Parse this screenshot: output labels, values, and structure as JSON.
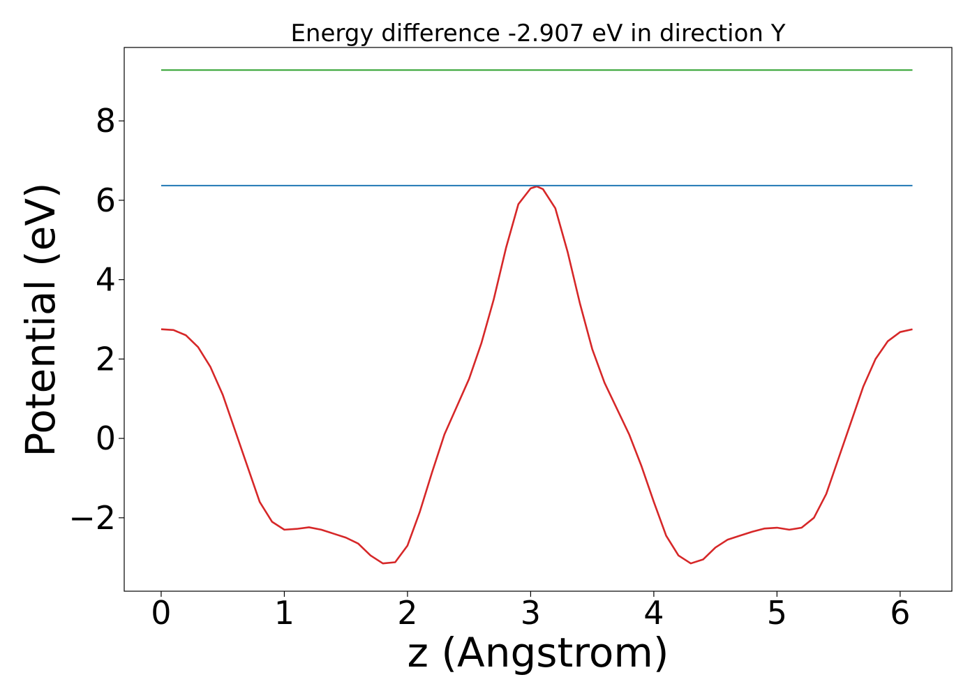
{
  "chart_data": {
    "type": "line",
    "title": "Energy difference -2.907 eV in direction Y",
    "xlabel": "z (Angstrom)",
    "ylabel": "Potential (eV)",
    "xlim": [
      -0.3,
      6.42
    ],
    "ylim": [
      -3.85,
      9.85
    ],
    "xticks": [
      0,
      1,
      2,
      3,
      4,
      5,
      6
    ],
    "xtick_labels": [
      "0",
      "1",
      "2",
      "3",
      "4",
      "5",
      "6"
    ],
    "yticks": [
      -2,
      0,
      2,
      4,
      6,
      8
    ],
    "ytick_labels": [
      "−2",
      "0",
      "2",
      "4",
      "6",
      "8"
    ],
    "grid": false,
    "series": [
      {
        "color": "#d62728",
        "points": [
          [
            0,
            2.75
          ],
          [
            0.1,
            2.73
          ],
          [
            0.2,
            2.6
          ],
          [
            0.3,
            2.3
          ],
          [
            0.4,
            1.8
          ],
          [
            0.5,
            1.1
          ],
          [
            0.6,
            0.2
          ],
          [
            0.7,
            -0.7
          ],
          [
            0.8,
            -1.6
          ],
          [
            0.9,
            -2.1
          ],
          [
            1.0,
            -2.3
          ],
          [
            1.1,
            -2.28
          ],
          [
            1.2,
            -2.24
          ],
          [
            1.3,
            -2.3
          ],
          [
            1.4,
            -2.4
          ],
          [
            1.5,
            -2.5
          ],
          [
            1.6,
            -2.65
          ],
          [
            1.7,
            -2.95
          ],
          [
            1.8,
            -3.15
          ],
          [
            1.9,
            -3.12
          ],
          [
            2.0,
            -2.7
          ],
          [
            2.1,
            -1.85
          ],
          [
            2.2,
            -0.85
          ],
          [
            2.3,
            0.1
          ],
          [
            2.4,
            0.8
          ],
          [
            2.5,
            1.5
          ],
          [
            2.6,
            2.4
          ],
          [
            2.7,
            3.5
          ],
          [
            2.8,
            4.8
          ],
          [
            2.9,
            5.9
          ],
          [
            3.0,
            6.3
          ],
          [
            3.05,
            6.35
          ],
          [
            3.1,
            6.28
          ],
          [
            3.2,
            5.8
          ],
          [
            3.3,
            4.7
          ],
          [
            3.4,
            3.4
          ],
          [
            3.5,
            2.25
          ],
          [
            3.6,
            1.4
          ],
          [
            3.7,
            0.75
          ],
          [
            3.8,
            0.1
          ],
          [
            3.9,
            -0.7
          ],
          [
            4.0,
            -1.6
          ],
          [
            4.1,
            -2.45
          ],
          [
            4.2,
            -2.95
          ],
          [
            4.3,
            -3.15
          ],
          [
            4.4,
            -3.05
          ],
          [
            4.5,
            -2.75
          ],
          [
            4.6,
            -2.55
          ],
          [
            4.7,
            -2.45
          ],
          [
            4.8,
            -2.35
          ],
          [
            4.9,
            -2.27
          ],
          [
            5.0,
            -2.25
          ],
          [
            5.1,
            -2.3
          ],
          [
            5.2,
            -2.25
          ],
          [
            5.3,
            -2.0
          ],
          [
            5.4,
            -1.4
          ],
          [
            5.5,
            -0.5
          ],
          [
            5.6,
            0.4
          ],
          [
            5.7,
            1.3
          ],
          [
            5.8,
            2.0
          ],
          [
            5.9,
            2.45
          ],
          [
            6.0,
            2.68
          ],
          [
            6.1,
            2.75
          ]
        ]
      },
      {
        "color": "#1f77b4",
        "points": [
          [
            0,
            6.37
          ],
          [
            6.1,
            6.37
          ]
        ]
      },
      {
        "color": "#2ca02c",
        "points": [
          [
            0,
            9.28
          ],
          [
            6.1,
            9.28
          ]
        ]
      }
    ]
  }
}
